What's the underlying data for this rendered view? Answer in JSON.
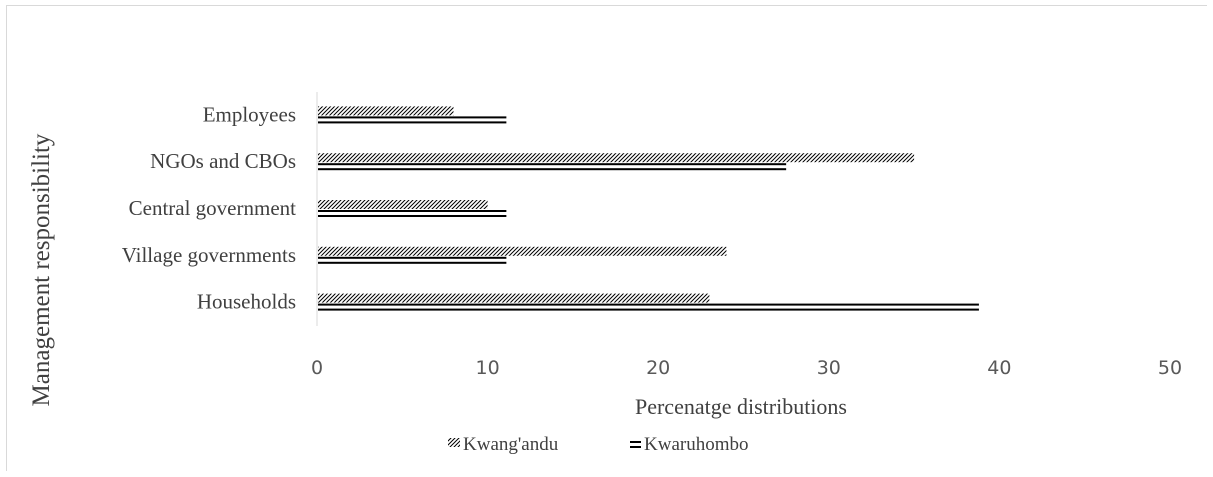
{
  "chart_data": {
    "type": "bar",
    "orientation": "horizontal",
    "categories": [
      "Employees",
      "NGOs and CBOs",
      "Central government",
      "Village governments",
      "Households"
    ],
    "series": [
      {
        "name": "Kwang'andu",
        "values": [
          8,
          35,
          10,
          24,
          23
        ],
        "pattern": "diagonal-hatch"
      },
      {
        "name": "Kwaruhombo",
        "values": [
          11.1,
          27.5,
          11.1,
          11.1,
          38.8
        ],
        "pattern": "double-line"
      }
    ],
    "xlabel": "Percenatge distributions",
    "ylabel": "Management responsibility",
    "xlim": [
      0,
      50
    ],
    "xticks": [
      "0",
      "10",
      "20",
      "30",
      "40",
      "50"
    ],
    "grid": false,
    "legend": "bottom"
  }
}
